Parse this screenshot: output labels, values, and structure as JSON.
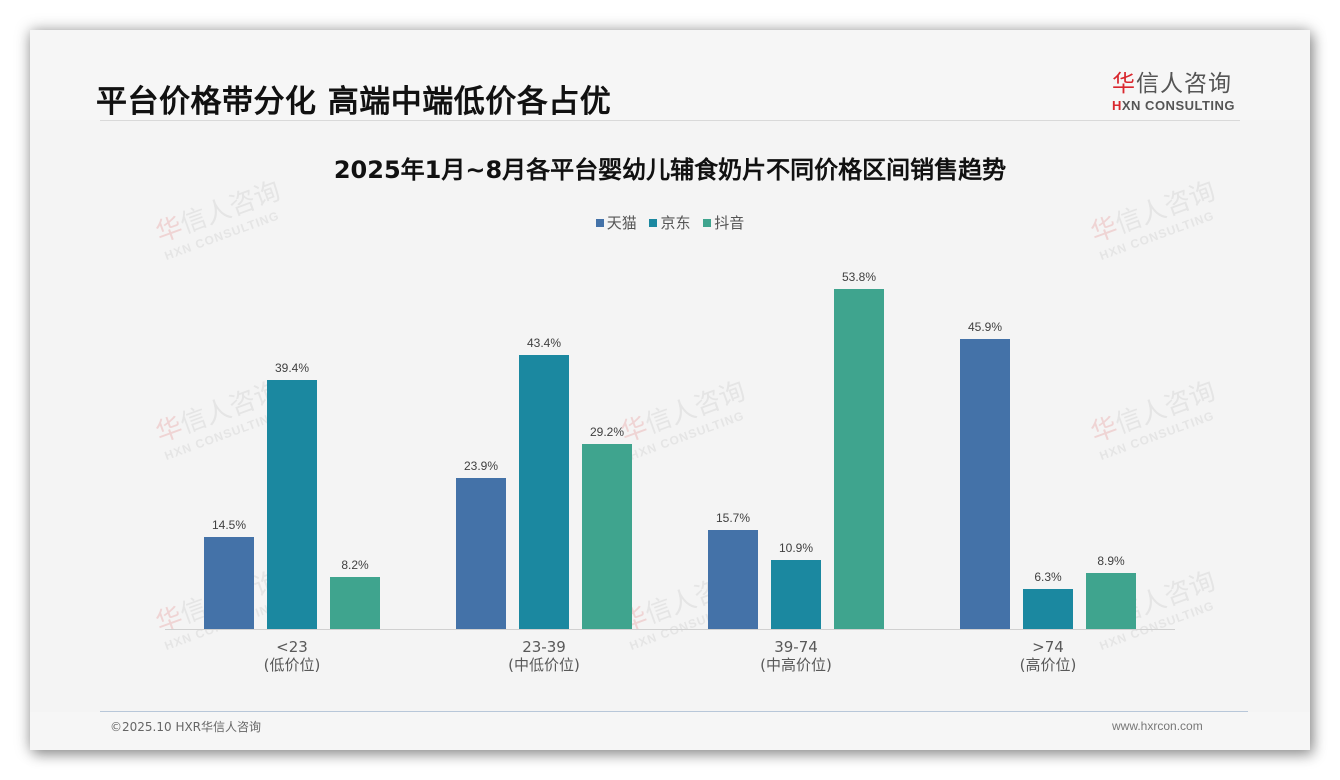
{
  "page": {
    "title": "平台价格带分化 高端中端低价各占优"
  },
  "logo": {
    "cn_first": "华",
    "cn_rest": "信人咨询",
    "en_first": "H",
    "en_rest": "XN CONSULTING"
  },
  "watermark": {
    "cn_first": "华",
    "cn_rest": "信人咨询",
    "en": "HXN CONSULTING"
  },
  "footer": {
    "copyright": "©2025.10 HXR华信人咨询",
    "website": "www.hxrcon.com"
  },
  "colors": {
    "tmall": "#4472a8",
    "jd": "#1b88a0",
    "douyin": "#3fa48e"
  },
  "chart_data": {
    "type": "bar",
    "title": "2025年1月~8月各平台婴幼儿辅食奶片不同价格区间销售趋势",
    "xlabel": "",
    "ylabel": "",
    "ylim": [
      0,
      60
    ],
    "grid": false,
    "legend_position": "top",
    "categories": [
      "<23\n(低价位)",
      "23-39\n(中低价位)",
      "39-74\n(中高价位)",
      ">74\n(高价位)"
    ],
    "category_labels": [
      {
        "range": "<23",
        "tier": "(低价位)"
      },
      {
        "range": "23-39",
        "tier": "(中低价位)"
      },
      {
        "range": "39-74",
        "tier": "(中高价位)"
      },
      {
        "range": ">74",
        "tier": "(高价位)"
      }
    ],
    "series": [
      {
        "name": "天猫",
        "color": "#4472a8",
        "values": [
          14.5,
          23.9,
          15.7,
          45.9
        ],
        "labels": [
          "14.5%",
          "23.9%",
          "15.7%",
          "45.9%"
        ]
      },
      {
        "name": "京东",
        "color": "#1b88a0",
        "values": [
          39.4,
          43.4,
          10.9,
          6.3
        ],
        "labels": [
          "39.4%",
          "43.4%",
          "10.9%",
          "6.3%"
        ]
      },
      {
        "name": "抖音",
        "color": "#3fa48e",
        "values": [
          8.2,
          29.2,
          53.8,
          8.9
        ],
        "labels": [
          "8.2%",
          "29.2%",
          "53.8%",
          "8.9%"
        ]
      }
    ],
    "unit": "%"
  }
}
